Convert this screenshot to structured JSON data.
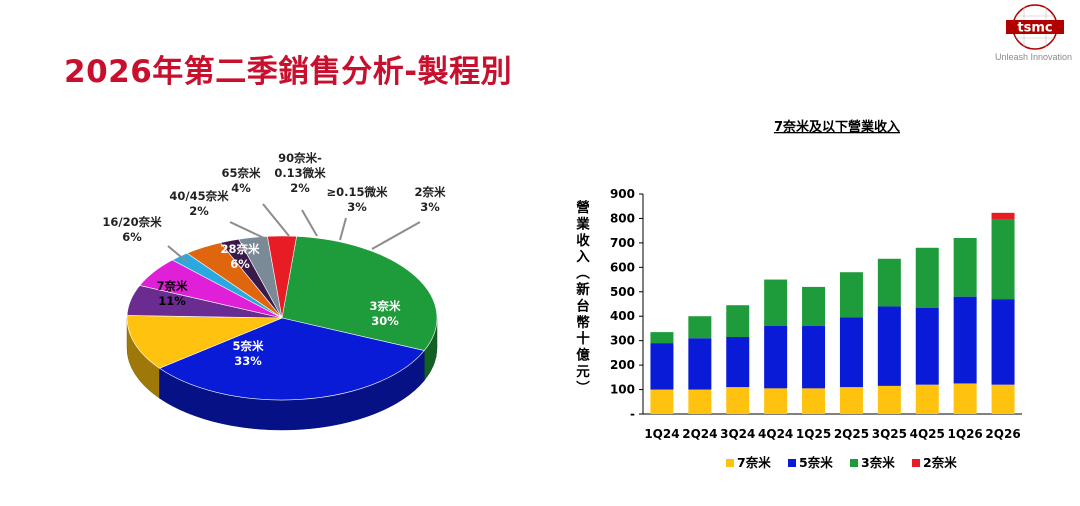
{
  "slide": {
    "title": "2026年第二季銷售分析-製程別",
    "logo_text": "tsmc",
    "tagline": "Unleash Innovation"
  },
  "chart_data": [
    {
      "type": "pie",
      "title": "",
      "slices": [
        {
          "label": "3奈米",
          "value": 30,
          "pct_label": "30%",
          "color": "#1e9b3a"
        },
        {
          "label": "5奈米",
          "value": 33,
          "pct_label": "33%",
          "color": "#0a1bd8"
        },
        {
          "label": "7奈米",
          "value": 11,
          "pct_label": "11%",
          "color": "#ffc20e"
        },
        {
          "label": "16/20奈米",
          "value": 6,
          "pct_label": "6%",
          "color": "#6a2c91"
        },
        {
          "label": "28奈米",
          "value": 6,
          "pct_label": "6%",
          "color": "#e020d8"
        },
        {
          "label": "40/45奈米",
          "value": 2,
          "pct_label": "2%",
          "color": "#2aa8e0"
        },
        {
          "label": "65奈米",
          "value": 4,
          "pct_label": "4%",
          "color": "#e0650f"
        },
        {
          "label": "90奈米-\n0.13微米",
          "value": 2,
          "pct_label": "2%",
          "color": "#3a1a4a"
        },
        {
          "label": "≥0.15微米",
          "value": 3,
          "pct_label": "3%",
          "color": "#7a8a96"
        },
        {
          "label": "2奈米",
          "value": 3,
          "pct_label": "3%",
          "color": "#e81c24"
        }
      ]
    },
    {
      "type": "bar",
      "stacked": true,
      "title": "7奈米及以下營業收入",
      "ylabel": "營業收入(新台幣十億元)",
      "ylim": [
        0,
        900
      ],
      "yticks": [
        "-",
        "100",
        "200",
        "300",
        "400",
        "500",
        "600",
        "700",
        "800",
        "900"
      ],
      "categories": [
        "1Q24",
        "2Q24",
        "3Q24",
        "4Q24",
        "1Q25",
        "2Q25",
        "3Q25",
        "4Q25",
        "1Q26",
        "2Q26"
      ],
      "series": [
        {
          "name": "7奈米",
          "color": "#ffc20e",
          "values": [
            100,
            100,
            110,
            105,
            105,
            110,
            115,
            120,
            125,
            120
          ]
        },
        {
          "name": "5奈米",
          "color": "#0a1bd8",
          "values": [
            190,
            210,
            205,
            255,
            255,
            285,
            325,
            315,
            355,
            350
          ]
        },
        {
          "name": "3奈米",
          "color": "#1e9b3a",
          "values": [
            45,
            90,
            130,
            190,
            160,
            185,
            195,
            245,
            240,
            325
          ]
        },
        {
          "name": "2奈米",
          "color": "#e81c24",
          "values": [
            0,
            0,
            0,
            0,
            0,
            0,
            0,
            0,
            0,
            28
          ]
        }
      ]
    }
  ]
}
